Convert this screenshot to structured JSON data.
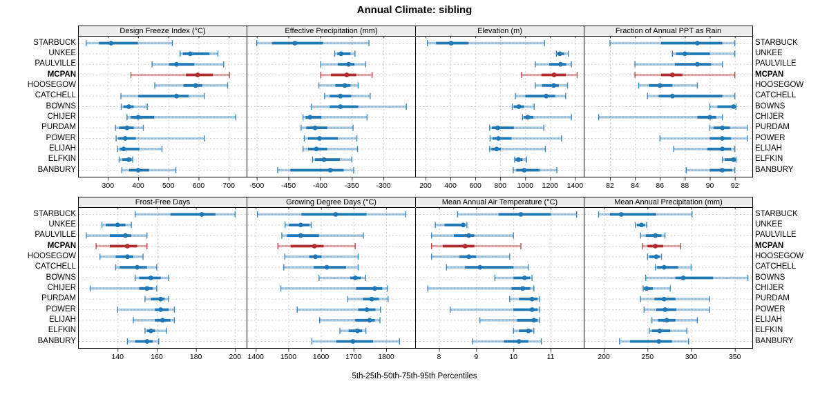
{
  "title": "Annual Climate: sibling",
  "footer": "5th-25th-50th-75th-95th Percentiles",
  "percentile_labels": [
    "5th",
    "25th",
    "50th",
    "75th",
    "95th"
  ],
  "categories": [
    "STARBUCK",
    "UNKEE",
    "PAULVILLE",
    "MCPAN",
    "HOOSEGOW",
    "CATCHELL",
    "BOWNS",
    "CHIJER",
    "PURDAM",
    "POWER",
    "ELIJAH",
    "ELFKIN",
    "BANBURY"
  ],
  "highlight_category": "MCPAN",
  "colors": {
    "series": "#1f77b4",
    "highlight": "#b22c2f",
    "strip_bg": "#ededed",
    "grid": "#cdcdcd",
    "border": "#000000"
  },
  "chart_data": [
    {
      "type": "scatter",
      "variant": "percentile-interval-dotplot",
      "title": "Design Freeze Index (°C)",
      "row": 0,
      "col": 0,
      "xlim": [
        201,
        759
      ],
      "ticks": [
        300,
        400,
        500,
        600,
        700
      ],
      "series": {
        "STARBUCK": [
          228,
          270,
          310,
          399,
          513
        ],
        "UNKEE": [
          539,
          548,
          572,
          636,
          664
        ],
        "PAULVILLE": [
          446,
          502,
          527,
          586,
          683
        ],
        "MCPAN": [
          376,
          558,
          597,
          647,
          702
        ],
        "HOOSEGOW": [
          455,
          550,
          590,
          612,
          696
        ],
        "CATCHELL": [
          343,
          400,
          527,
          567,
          619
        ],
        "BOWNS": [
          344,
          351,
          369,
          385,
          430
        ],
        "CHIJER": [
          363,
          375,
          400,
          453,
          723
        ],
        "PURDAM": [
          325,
          337,
          363,
          385,
          417
        ],
        "POWER": [
          327,
          334,
          357,
          392,
          619
        ],
        "ELIJAH": [
          332,
          339,
          352,
          404,
          479
        ],
        "ELFKIN": [
          337,
          347,
          369,
          378,
          382
        ],
        "BANBURY": [
          346,
          370,
          400,
          436,
          525
        ]
      }
    },
    {
      "type": "scatter",
      "variant": "percentile-interval-dotplot",
      "title": "Effective Precipitation (mm)",
      "row": 0,
      "col": 1,
      "xlim": [
        -516,
        -250
      ],
      "ticks": [
        -500,
        -450,
        -400,
        -350,
        -300
      ],
      "series": {
        "STARBUCK": [
          -500,
          -476,
          -440,
          -396,
          -323
        ],
        "UNKEE": [
          -377,
          -373,
          -367,
          -352,
          -345
        ],
        "PAULVILLE": [
          -399,
          -372,
          -355,
          -346,
          -328
        ],
        "MCPAN": [
          -399,
          -383,
          -358,
          -343,
          -318
        ],
        "HOOSEGOW": [
          -402,
          -376,
          -361,
          -352,
          -340
        ],
        "CATCHELL": [
          -393,
          -385,
          -368,
          -351,
          -321
        ],
        "BOWNS": [
          -414,
          -385,
          -368,
          -340,
          -264
        ],
        "CHIJER": [
          -427,
          -423,
          -416,
          -398,
          -326
        ],
        "PURDAM": [
          -430,
          -422,
          -408,
          -389,
          -348
        ],
        "POWER": [
          -425,
          -419,
          -401,
          -372,
          -342
        ],
        "ELIJAH": [
          -427,
          -419,
          -406,
          -389,
          -341
        ],
        "ELFKIN": [
          -412,
          -408,
          -394,
          -369,
          -350
        ],
        "BANBURY": [
          -467,
          -447,
          -384,
          -363,
          -347
        ]
      }
    },
    {
      "type": "scatter",
      "variant": "percentile-interval-dotplot",
      "title": "Elevation (m)",
      "row": 0,
      "col": 2,
      "xlim": [
        117,
        1470
      ],
      "ticks": [
        200,
        400,
        600,
        800,
        1000,
        1200,
        1400
      ],
      "series": {
        "STARBUCK": [
          215,
          285,
          405,
          545,
          1155
        ],
        "UNKEE": [
          1250,
          1256,
          1278,
          1312,
          1347
        ],
        "PAULVILLE": [
          1081,
          1192,
          1284,
          1329,
          1371
        ],
        "MCPAN": [
          970,
          1131,
          1232,
          1325,
          1417
        ],
        "HOOSEGOW": [
          1081,
          1137,
          1229,
          1270,
          1340
        ],
        "CATCHELL": [
          922,
          1001,
          1168,
          1242,
          1325
        ],
        "BOWNS": [
          896,
          909,
          949,
          988,
          1072
        ],
        "CHIJER": [
          978,
          988,
          1020,
          1066,
          1371
        ],
        "PURDAM": [
          715,
          733,
          779,
          909,
          1149
        ],
        "POWER": [
          718,
          738,
          785,
          890,
          1292
        ],
        "ELIJAH": [
          715,
          729,
          770,
          804,
          1162
        ],
        "ELFKIN": [
          915,
          922,
          946,
          978,
          1011
        ],
        "BANBURY": [
          904,
          928,
          992,
          1116,
          1254
        ]
      }
    },
    {
      "type": "scatter",
      "variant": "percentile-interval-dotplot",
      "title": "Fraction of Annual PPT as Rain",
      "row": 0,
      "col": 3,
      "xlim": [
        79.9,
        93.4
      ],
      "ticks": [
        82,
        84,
        86,
        88,
        90,
        92
      ],
      "series": {
        "STARBUCK": [
          82,
          86.1,
          89,
          91,
          92
        ],
        "UNKEE": [
          87,
          87.3,
          88,
          90,
          92
        ],
        "PAULVILLE": [
          84,
          87.2,
          89,
          90.1,
          91
        ],
        "MCPAN": [
          84,
          86.1,
          87,
          87.8,
          92
        ],
        "HOOSEGOW": [
          84.3,
          85.1,
          86,
          87,
          89
        ],
        "CATCHELL": [
          85,
          85.9,
          87,
          91,
          92
        ],
        "BOWNS": [
          90,
          90.6,
          91.9,
          92,
          92.1
        ],
        "CHIJER": [
          81.1,
          89,
          90,
          90.5,
          91
        ],
        "PURDAM": [
          90,
          90.3,
          91,
          91.6,
          93
        ],
        "POWER": [
          86,
          90,
          91,
          91.7,
          93
        ],
        "ELIJAH": [
          87.1,
          89.8,
          91,
          91.7,
          92
        ],
        "ELFKIN": [
          91,
          91.2,
          91.9,
          92,
          92.1
        ],
        "BANBURY": [
          88.1,
          90,
          91,
          91.8,
          92
        ]
      }
    },
    {
      "type": "scatter",
      "variant": "percentile-interval-dotplot",
      "title": "Frost-Free Days",
      "row": 1,
      "col": 0,
      "xlim": [
        119.8,
        205.9
      ],
      "ticks": [
        140,
        160,
        180,
        200
      ],
      "series": {
        "STARBUCK": [
          149,
          167,
          183,
          190,
          200
        ],
        "UNKEE": [
          132,
          134,
          140,
          144,
          147
        ],
        "PAULVILLE": [
          124,
          136,
          144,
          147,
          155
        ],
        "MCPAN": [
          129,
          136,
          145,
          150,
          155
        ],
        "HOOSEGOW": [
          131,
          139,
          145,
          148,
          153
        ],
        "CATCHELL": [
          139,
          141,
          150,
          155,
          160
        ],
        "BOWNS": [
          149,
          151,
          157,
          162,
          166
        ],
        "CHIJER": [
          126,
          151,
          155,
          158,
          160
        ],
        "PURDAM": [
          154,
          157,
          162,
          164,
          166
        ],
        "POWER": [
          140,
          159,
          162,
          166,
          169
        ],
        "ELIJAH": [
          148,
          159,
          163,
          167,
          169
        ],
        "ELFKIN": [
          154,
          155,
          157,
          159,
          165
        ],
        "BANBURY": [
          145,
          149,
          155,
          158,
          161
        ]
      }
    },
    {
      "type": "scatter",
      "variant": "percentile-interval-dotplot",
      "title": "Growing Degree Days (°C)",
      "row": 1,
      "col": 1,
      "xlim": [
        1372,
        1889
      ],
      "ticks": [
        1400,
        1500,
        1600,
        1700,
        1800
      ],
      "series": {
        "STARBUCK": [
          1405,
          1540,
          1645,
          1740,
          1860
        ],
        "UNKEE": [
          1490,
          1502,
          1538,
          1565,
          1570
        ],
        "PAULVILLE": [
          1480,
          1496,
          1538,
          1594,
          1730
        ],
        "MCPAN": [
          1468,
          1507,
          1580,
          1608,
          1705
        ],
        "HOOSEGOW": [
          1489,
          1564,
          1583,
          1602,
          1714
        ],
        "CATCHELL": [
          1486,
          1578,
          1618,
          1677,
          1714
        ],
        "BOWNS": [
          1594,
          1690,
          1705,
          1722,
          1737
        ],
        "CHIJER": [
          1477,
          1708,
          1765,
          1788,
          1804
        ],
        "PURDAM": [
          1682,
          1729,
          1756,
          1777,
          1806
        ],
        "POWER": [
          1527,
          1714,
          1741,
          1767,
          1783
        ],
        "ELIJAH": [
          1596,
          1705,
          1749,
          1765,
          1781
        ],
        "ELFKIN": [
          1658,
          1685,
          1712,
          1726,
          1738
        ],
        "BANBURY": [
          1572,
          1647,
          1698,
          1760,
          1841
        ]
      }
    },
    {
      "type": "scatter",
      "variant": "percentile-interval-dotplot",
      "title": "Mean Annual Air Temperature (°C)",
      "row": 1,
      "col": 2,
      "xlim": [
        7.36,
        11.89
      ],
      "ticks": [
        8,
        9,
        10,
        11
      ],
      "series": {
        "STARBUCK": [
          8.5,
          9.6,
          10.2,
          11.0,
          11.7
        ],
        "UNKEE": [
          7.9,
          8.15,
          8.65,
          8.7,
          8.75
        ],
        "PAULVILLE": [
          7.8,
          8.4,
          8.8,
          8.95,
          10.0
        ],
        "MCPAN": [
          7.8,
          8.1,
          8.7,
          8.95,
          10.2
        ],
        "HOOSEGOW": [
          7.8,
          8.55,
          8.8,
          9.0,
          9.9
        ],
        "CATCHELL": [
          8.2,
          8.7,
          9.1,
          10.0,
          10.4
        ],
        "BOWNS": [
          9.5,
          10.0,
          10.3,
          10.45,
          10.5
        ],
        "CHIJER": [
          7.7,
          9.95,
          10.25,
          10.45,
          10.55
        ],
        "PURDAM": [
          9.9,
          10.15,
          10.5,
          10.65,
          10.7
        ],
        "POWER": [
          8.3,
          10.0,
          10.5,
          10.65,
          10.7
        ],
        "ELIJAH": [
          9.1,
          10.1,
          10.55,
          10.65,
          10.7
        ],
        "ELFKIN": [
          10.0,
          10.15,
          10.4,
          10.5,
          10.55
        ],
        "BANBURY": [
          8.9,
          9.75,
          10.15,
          10.4,
          10.75
        ]
      }
    },
    {
      "type": "scatter",
      "variant": "percentile-interval-dotplot",
      "title": "Mean Annual Precipitation (mm)",
      "row": 1,
      "col": 3,
      "xlim": [
        177,
        370
      ],
      "ticks": [
        200,
        250,
        300,
        350
      ],
      "series": {
        "STARBUCK": [
          194,
          207,
          220,
          260,
          301
        ],
        "UNKEE": [
          236,
          238,
          243,
          247,
          249
        ],
        "PAULVILLE": [
          242,
          248,
          259,
          266,
          270
        ],
        "MCPAN": [
          244,
          250,
          259,
          268,
          288
        ],
        "HOOSEGOW": [
          250,
          252,
          260,
          264,
          266
        ],
        "CATCHELL": [
          259,
          261,
          269,
          285,
          300
        ],
        "BOWNS": [
          248,
          282,
          291,
          325,
          365
        ],
        "CHIJER": [
          245,
          246,
          249,
          256,
          276
        ],
        "PURDAM": [
          242,
          258,
          269,
          282,
          321
        ],
        "POWER": [
          246,
          260,
          270,
          283,
          321
        ],
        "ELIJAH": [
          255,
          262,
          272,
          282,
          307
        ],
        "ELFKIN": [
          252,
          255,
          264,
          276,
          295
        ],
        "BANBURY": [
          218,
          230,
          263,
          278,
          297
        ]
      }
    }
  ]
}
